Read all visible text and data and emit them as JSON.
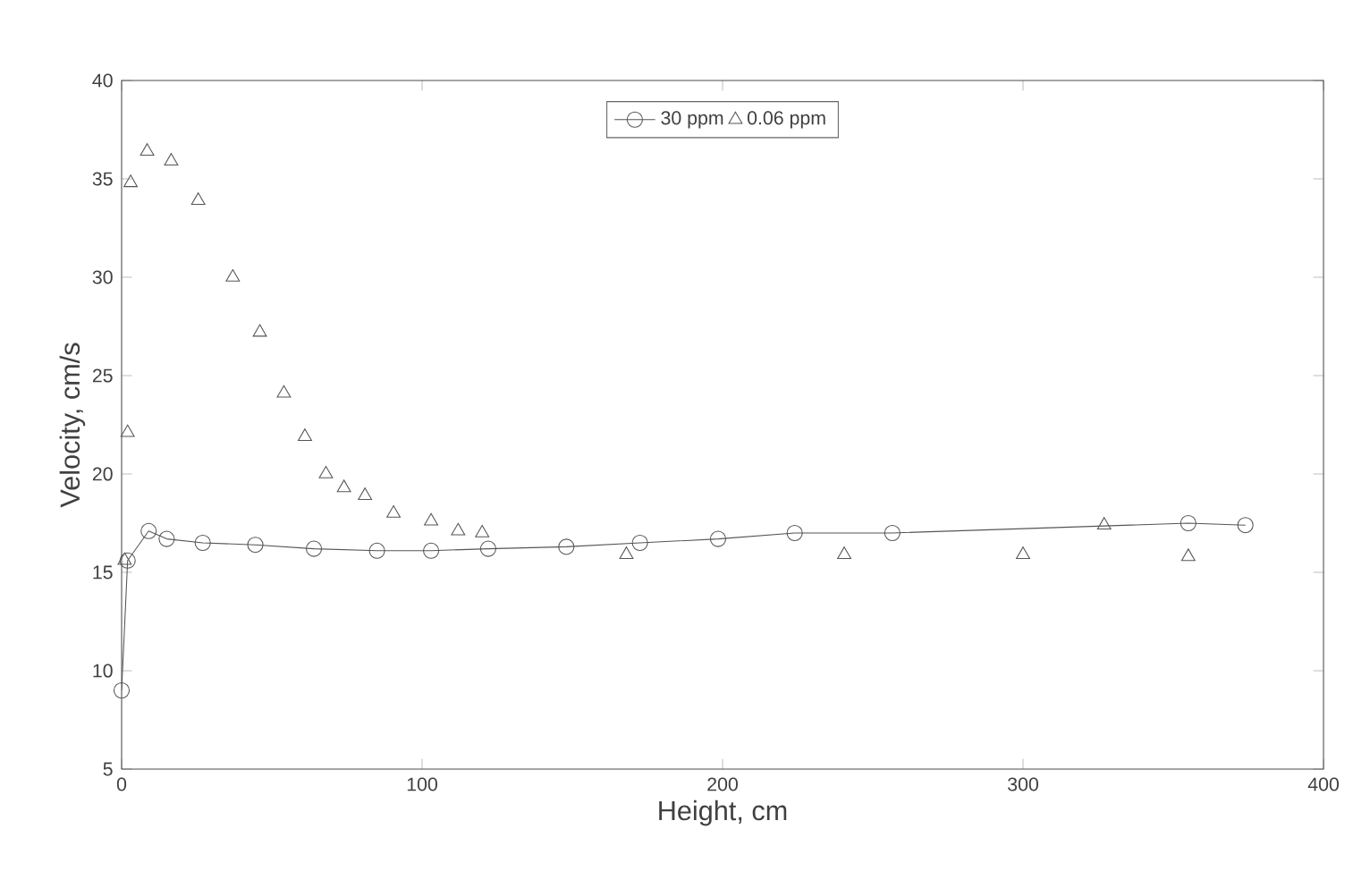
{
  "chart_data": {
    "type": "scatter",
    "xlabel": "Height, cm",
    "ylabel": "Velocity, cm/s",
    "xlim": [
      0,
      400
    ],
    "ylim": [
      5,
      40
    ],
    "xticks": [
      0,
      100,
      200,
      300,
      400
    ],
    "yticks": [
      5,
      10,
      15,
      20,
      25,
      30,
      35,
      40
    ],
    "grid": false,
    "legend": "top",
    "series": [
      {
        "name": "30 ppm",
        "type": "line",
        "marker": "circle",
        "color": "#555555",
        "x": [
          0,
          2,
          9,
          15,
          27,
          44.5,
          64,
          85,
          103,
          122,
          148,
          172.5,
          198.5,
          224,
          256.5,
          355,
          374
        ],
        "values": [
          9.0,
          15.6,
          17.1,
          16.7,
          16.5,
          16.4,
          16.2,
          16.1,
          16.1,
          16.2,
          16.3,
          16.5,
          16.7,
          17.0,
          17.0,
          17.5,
          17.4
        ]
      },
      {
        "name": "0.06 ppm",
        "marker": "triangle",
        "color": "#555555",
        "x": [
          1,
          2,
          3,
          8.5,
          16.5,
          25.5,
          37,
          46,
          54,
          61,
          68,
          74,
          81,
          90.5,
          103,
          112,
          120,
          168,
          240.5,
          300,
          327,
          355
        ],
        "values": [
          15.6,
          22.1,
          34.8,
          36.4,
          35.9,
          33.9,
          30.0,
          27.2,
          24.1,
          21.9,
          20.0,
          19.3,
          18.9,
          18.0,
          17.6,
          17.1,
          17.0,
          15.9,
          15.9,
          15.9,
          17.4,
          15.8
        ]
      }
    ]
  }
}
